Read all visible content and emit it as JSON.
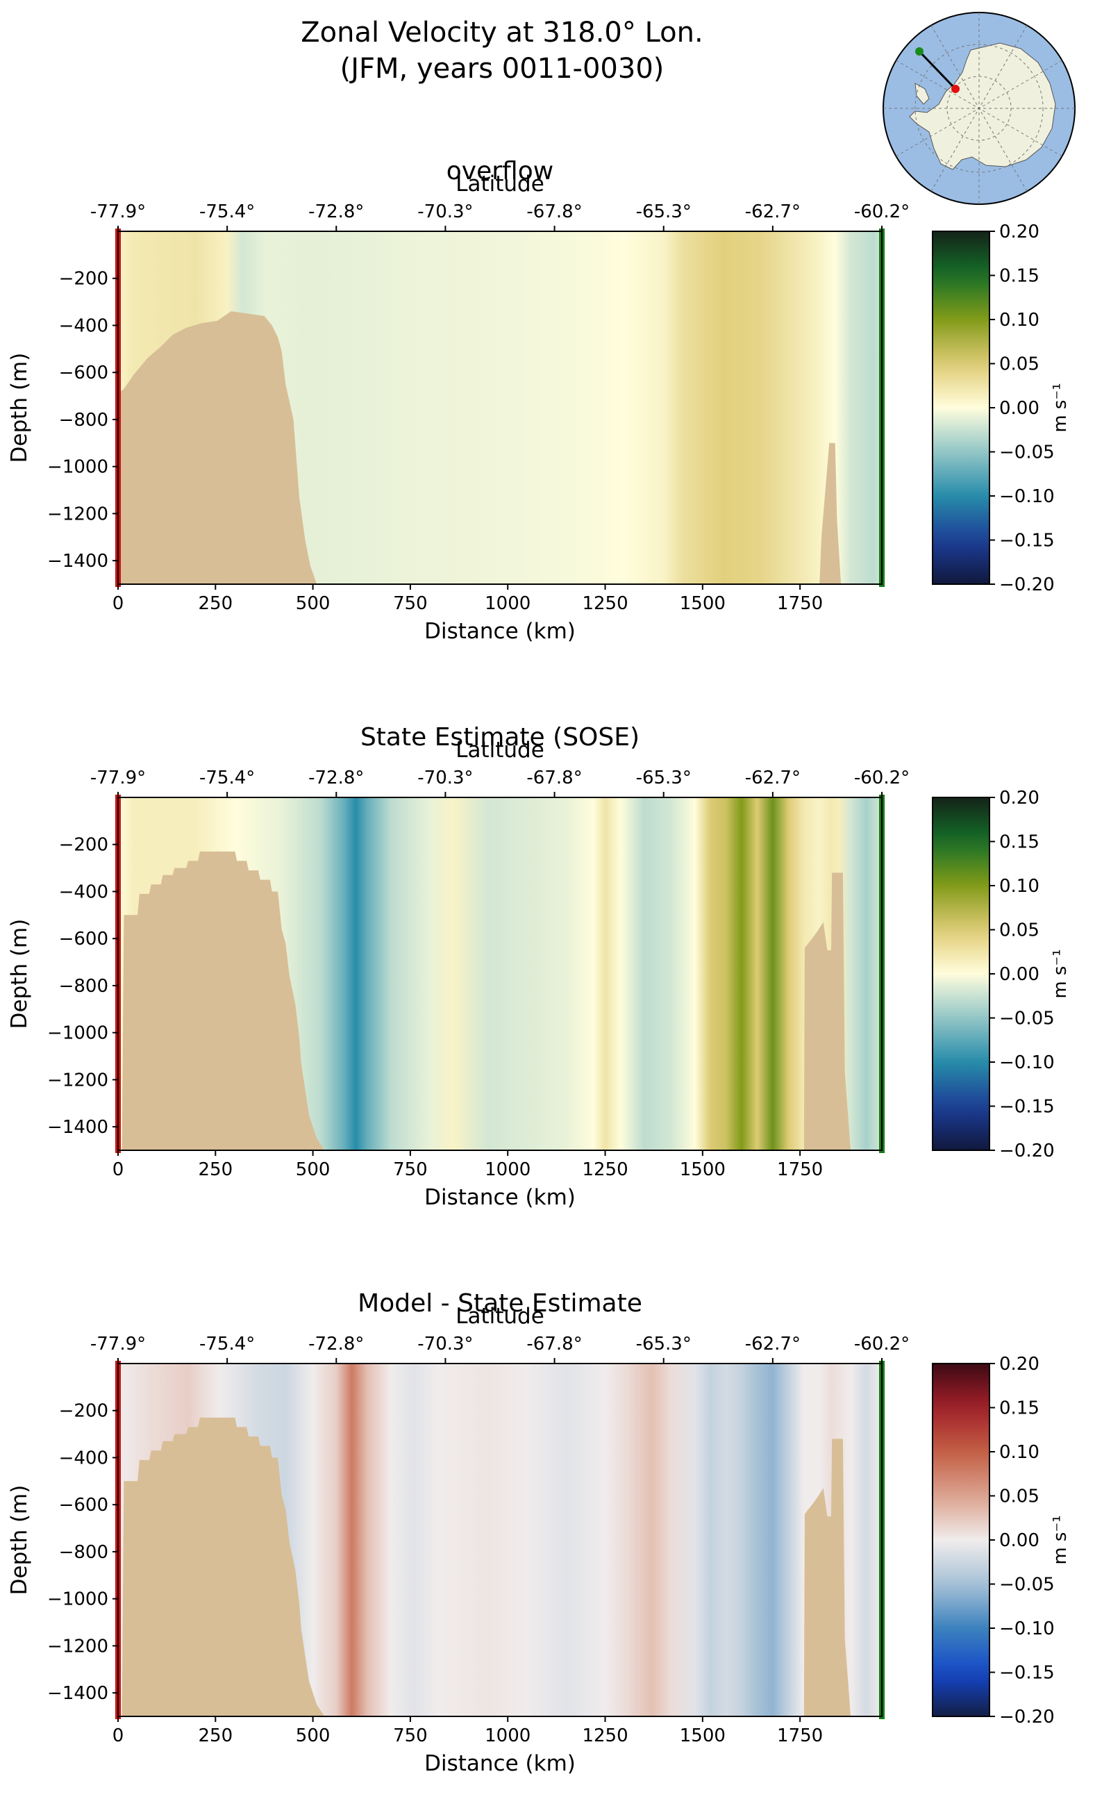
{
  "figure": {
    "title_line1": "Zonal Velocity at 318.0° Lon.",
    "title_line2": "(JFM, years 0011-0030)"
  },
  "inset_map": {
    "ocean_color": "#9bbde4",
    "land_color": "#f0f0de",
    "start_marker_color": "#1a8a1a",
    "end_marker_color": "#e01010",
    "transect_color": "#000000"
  },
  "colors": {
    "topography": "#d8be96",
    "left_edge": "#cc1111",
    "right_edge": "#157a15"
  },
  "chart_data": [
    {
      "type": "heatmap",
      "title": "overflow",
      "xlabel": "Distance (km)",
      "ylabel": "Depth (m)",
      "top_axis_label": "Latitude",
      "xlim": [
        0,
        1960
      ],
      "ylim": [
        -1500,
        0
      ],
      "x_ticks": [
        0,
        250,
        500,
        750,
        1000,
        1250,
        1500,
        1750
      ],
      "y_ticks": [
        -200,
        -400,
        -600,
        -800,
        -1000,
        -1200,
        -1400
      ],
      "lat_ticks": [
        {
          "distance": 0,
          "label": "-77.9°"
        },
        {
          "distance": 280,
          "label": "-75.4°"
        },
        {
          "distance": 560,
          "label": "-72.8°"
        },
        {
          "distance": 840,
          "label": "-70.3°"
        },
        {
          "distance": 1120,
          "label": "-67.8°"
        },
        {
          "distance": 1400,
          "label": "-65.3°"
        },
        {
          "distance": 1680,
          "label": "-62.7°"
        },
        {
          "distance": 1960,
          "label": "-60.2°"
        }
      ],
      "colorbar": {
        "label": "m s⁻¹",
        "colormap": "delta",
        "vmin": -0.2,
        "vmax": 0.2,
        "ticks": [
          0.2,
          0.15,
          0.1,
          0.05,
          0.0,
          -0.05,
          -0.1,
          -0.15,
          -0.2
        ]
      },
      "velocity_profile_m_s": [
        [
          0,
          0.01
        ],
        [
          40,
          0.02
        ],
        [
          120,
          0.022
        ],
        [
          200,
          0.025
        ],
        [
          280,
          0.012
        ],
        [
          320,
          -0.02
        ],
        [
          380,
          -0.01
        ],
        [
          500,
          -0.012
        ],
        [
          650,
          -0.01
        ],
        [
          800,
          -0.008
        ],
        [
          1000,
          -0.006
        ],
        [
          1200,
          -0.003
        ],
        [
          1300,
          0.0
        ],
        [
          1400,
          0.01
        ],
        [
          1450,
          0.03
        ],
        [
          1550,
          0.045
        ],
        [
          1650,
          0.04
        ],
        [
          1700,
          0.03
        ],
        [
          1780,
          0.015
        ],
        [
          1840,
          0.0
        ],
        [
          1880,
          -0.02
        ],
        [
          1940,
          -0.03
        ],
        [
          1960,
          -0.02
        ]
      ],
      "bathymetry_depth_m": [
        [
          0,
          -690
        ],
        [
          15,
          -670
        ],
        [
          40,
          -610
        ],
        [
          75,
          -540
        ],
        [
          110,
          -490
        ],
        [
          140,
          -440
        ],
        [
          175,
          -410
        ],
        [
          215,
          -390
        ],
        [
          255,
          -380
        ],
        [
          290,
          -340
        ],
        [
          375,
          -360
        ],
        [
          395,
          -400
        ],
        [
          410,
          -450
        ],
        [
          420,
          -510
        ],
        [
          430,
          -650
        ],
        [
          450,
          -800
        ],
        [
          465,
          -1130
        ],
        [
          480,
          -1310
        ],
        [
          493,
          -1420
        ],
        [
          510,
          -1500
        ],
        [
          1800,
          -1500
        ],
        [
          1805,
          -1300
        ],
        [
          1815,
          -1100
        ],
        [
          1825,
          -900
        ],
        [
          1840,
          -900
        ],
        [
          1845,
          -1230
        ],
        [
          1855,
          -1500
        ]
      ]
    },
    {
      "type": "heatmap",
      "title": "State Estimate (SOSE)",
      "xlabel": "Distance (km)",
      "ylabel": "Depth (m)",
      "top_axis_label": "Latitude",
      "xlim": [
        0,
        1960
      ],
      "ylim": [
        -1500,
        0
      ],
      "x_ticks": [
        0,
        250,
        500,
        750,
        1000,
        1250,
        1500,
        1750
      ],
      "y_ticks": [
        -200,
        -400,
        -600,
        -800,
        -1000,
        -1200,
        -1400
      ],
      "lat_ticks": [
        {
          "distance": 0,
          "label": "-77.9°"
        },
        {
          "distance": 280,
          "label": "-75.4°"
        },
        {
          "distance": 560,
          "label": "-72.8°"
        },
        {
          "distance": 840,
          "label": "-70.3°"
        },
        {
          "distance": 1120,
          "label": "-67.8°"
        },
        {
          "distance": 1400,
          "label": "-65.3°"
        },
        {
          "distance": 1680,
          "label": "-62.7°"
        },
        {
          "distance": 1960,
          "label": "-60.2°"
        }
      ],
      "colorbar": {
        "label": "m s⁻¹",
        "colormap": "delta",
        "vmin": -0.2,
        "vmax": 0.2,
        "ticks": [
          0.2,
          0.15,
          0.1,
          0.05,
          0.0,
          -0.05,
          -0.1,
          -0.15,
          -0.2
        ]
      },
      "velocity_profile_m_s": [
        [
          0,
          0.0
        ],
        [
          40,
          0.015
        ],
        [
          200,
          0.015
        ],
        [
          300,
          0.0
        ],
        [
          420,
          -0.01
        ],
        [
          520,
          -0.03
        ],
        [
          580,
          -0.07
        ],
        [
          610,
          -0.1
        ],
        [
          640,
          -0.07
        ],
        [
          700,
          -0.03
        ],
        [
          800,
          -0.01
        ],
        [
          860,
          0.01
        ],
        [
          950,
          -0.02
        ],
        [
          1050,
          -0.015
        ],
        [
          1150,
          -0.01
        ],
        [
          1220,
          0.0
        ],
        [
          1250,
          0.025
        ],
        [
          1290,
          0.0
        ],
        [
          1350,
          -0.03
        ],
        [
          1420,
          -0.02
        ],
        [
          1480,
          0.0
        ],
        [
          1520,
          0.05
        ],
        [
          1560,
          0.06
        ],
        [
          1600,
          0.1
        ],
        [
          1640,
          0.05
        ],
        [
          1680,
          0.11
        ],
        [
          1720,
          0.05
        ],
        [
          1760,
          0.02
        ],
        [
          1800,
          0.01
        ],
        [
          1830,
          0.02
        ],
        [
          1850,
          0.015
        ],
        [
          1880,
          -0.02
        ],
        [
          1920,
          -0.04
        ],
        [
          1960,
          -0.02
        ]
      ],
      "bathymetry_depth_m": [
        [
          0,
          -1500
        ],
        [
          10,
          -1500
        ],
        [
          15,
          -500
        ],
        [
          50,
          -500
        ],
        [
          55,
          -410
        ],
        [
          80,
          -410
        ],
        [
          85,
          -370
        ],
        [
          110,
          -370
        ],
        [
          115,
          -330
        ],
        [
          140,
          -330
        ],
        [
          145,
          -300
        ],
        [
          175,
          -300
        ],
        [
          180,
          -270
        ],
        [
          205,
          -270
        ],
        [
          210,
          -230
        ],
        [
          300,
          -230
        ],
        [
          305,
          -270
        ],
        [
          330,
          -270
        ],
        [
          335,
          -310
        ],
        [
          360,
          -310
        ],
        [
          365,
          -350
        ],
        [
          390,
          -350
        ],
        [
          395,
          -400
        ],
        [
          410,
          -400
        ],
        [
          415,
          -480
        ],
        [
          420,
          -560
        ],
        [
          430,
          -620
        ],
        [
          440,
          -760
        ],
        [
          455,
          -880
        ],
        [
          465,
          -1020
        ],
        [
          470,
          -1130
        ],
        [
          480,
          -1240
        ],
        [
          490,
          -1350
        ],
        [
          510,
          -1450
        ],
        [
          530,
          -1500
        ],
        [
          1760,
          -1500
        ],
        [
          1762,
          -640
        ],
        [
          1790,
          -580
        ],
        [
          1810,
          -530
        ],
        [
          1820,
          -650
        ],
        [
          1830,
          -650
        ],
        [
          1832,
          -320
        ],
        [
          1860,
          -320
        ],
        [
          1865,
          -1170
        ],
        [
          1880,
          -1500
        ]
      ]
    },
    {
      "type": "heatmap",
      "title": "Model - State Estimate",
      "xlabel": "Distance (km)",
      "ylabel": "Depth (m)",
      "top_axis_label": "Latitude",
      "xlim": [
        0,
        1960
      ],
      "ylim": [
        -1500,
        0
      ],
      "x_ticks": [
        0,
        250,
        500,
        750,
        1000,
        1250,
        1500,
        1750
      ],
      "y_ticks": [
        -200,
        -400,
        -600,
        -800,
        -1000,
        -1200,
        -1400
      ],
      "lat_ticks": [
        {
          "distance": 0,
          "label": "-77.9°"
        },
        {
          "distance": 280,
          "label": "-75.4°"
        },
        {
          "distance": 560,
          "label": "-72.8°"
        },
        {
          "distance": 840,
          "label": "-70.3°"
        },
        {
          "distance": 1120,
          "label": "-67.8°"
        },
        {
          "distance": 1400,
          "label": "-65.3°"
        },
        {
          "distance": 1680,
          "label": "-62.7°"
        },
        {
          "distance": 1960,
          "label": "-60.2°"
        }
      ],
      "colorbar": {
        "label": "m s⁻¹",
        "colormap": "balance",
        "vmin": -0.2,
        "vmax": 0.2,
        "ticks": [
          0.2,
          0.15,
          0.1,
          0.05,
          0.0,
          -0.05,
          -0.1,
          -0.15,
          -0.2
        ]
      },
      "velocity_profile_m_s": [
        [
          0,
          0.0
        ],
        [
          80,
          0.01
        ],
        [
          180,
          0.02
        ],
        [
          260,
          0.0
        ],
        [
          360,
          -0.02
        ],
        [
          430,
          -0.025
        ],
        [
          500,
          0.0
        ],
        [
          560,
          0.02
        ],
        [
          600,
          0.08
        ],
        [
          640,
          0.03
        ],
        [
          700,
          0.0
        ],
        [
          760,
          -0.01
        ],
        [
          820,
          0.0
        ],
        [
          950,
          0.005
        ],
        [
          1050,
          0.0
        ],
        [
          1150,
          -0.01
        ],
        [
          1250,
          0.0
        ],
        [
          1300,
          0.01
        ],
        [
          1370,
          0.03
        ],
        [
          1420,
          0.01
        ],
        [
          1480,
          -0.01
        ],
        [
          1520,
          -0.03
        ],
        [
          1560,
          -0.02
        ],
        [
          1600,
          -0.03
        ],
        [
          1640,
          -0.05
        ],
        [
          1680,
          -0.06
        ],
        [
          1720,
          -0.03
        ],
        [
          1760,
          0.0
        ],
        [
          1800,
          0.0
        ],
        [
          1830,
          0.01
        ],
        [
          1880,
          0.0
        ],
        [
          1920,
          -0.02
        ],
        [
          1960,
          0.0
        ]
      ],
      "bathymetry_depth_m": [
        [
          0,
          -1500
        ],
        [
          10,
          -1500
        ],
        [
          15,
          -500
        ],
        [
          50,
          -500
        ],
        [
          55,
          -410
        ],
        [
          80,
          -410
        ],
        [
          85,
          -370
        ],
        [
          110,
          -370
        ],
        [
          115,
          -330
        ],
        [
          140,
          -330
        ],
        [
          145,
          -300
        ],
        [
          175,
          -300
        ],
        [
          180,
          -270
        ],
        [
          205,
          -270
        ],
        [
          210,
          -230
        ],
        [
          300,
          -230
        ],
        [
          305,
          -270
        ],
        [
          330,
          -270
        ],
        [
          335,
          -310
        ],
        [
          360,
          -310
        ],
        [
          365,
          -350
        ],
        [
          390,
          -350
        ],
        [
          395,
          -400
        ],
        [
          410,
          -400
        ],
        [
          415,
          -480
        ],
        [
          420,
          -560
        ],
        [
          430,
          -620
        ],
        [
          440,
          -760
        ],
        [
          455,
          -880
        ],
        [
          465,
          -1020
        ],
        [
          470,
          -1130
        ],
        [
          480,
          -1240
        ],
        [
          490,
          -1350
        ],
        [
          510,
          -1450
        ],
        [
          530,
          -1500
        ],
        [
          1760,
          -1500
        ],
        [
          1762,
          -640
        ],
        [
          1790,
          -580
        ],
        [
          1810,
          -530
        ],
        [
          1820,
          -650
        ],
        [
          1830,
          -650
        ],
        [
          1832,
          -320
        ],
        [
          1860,
          -320
        ],
        [
          1865,
          -1170
        ],
        [
          1880,
          -1500
        ]
      ]
    }
  ]
}
